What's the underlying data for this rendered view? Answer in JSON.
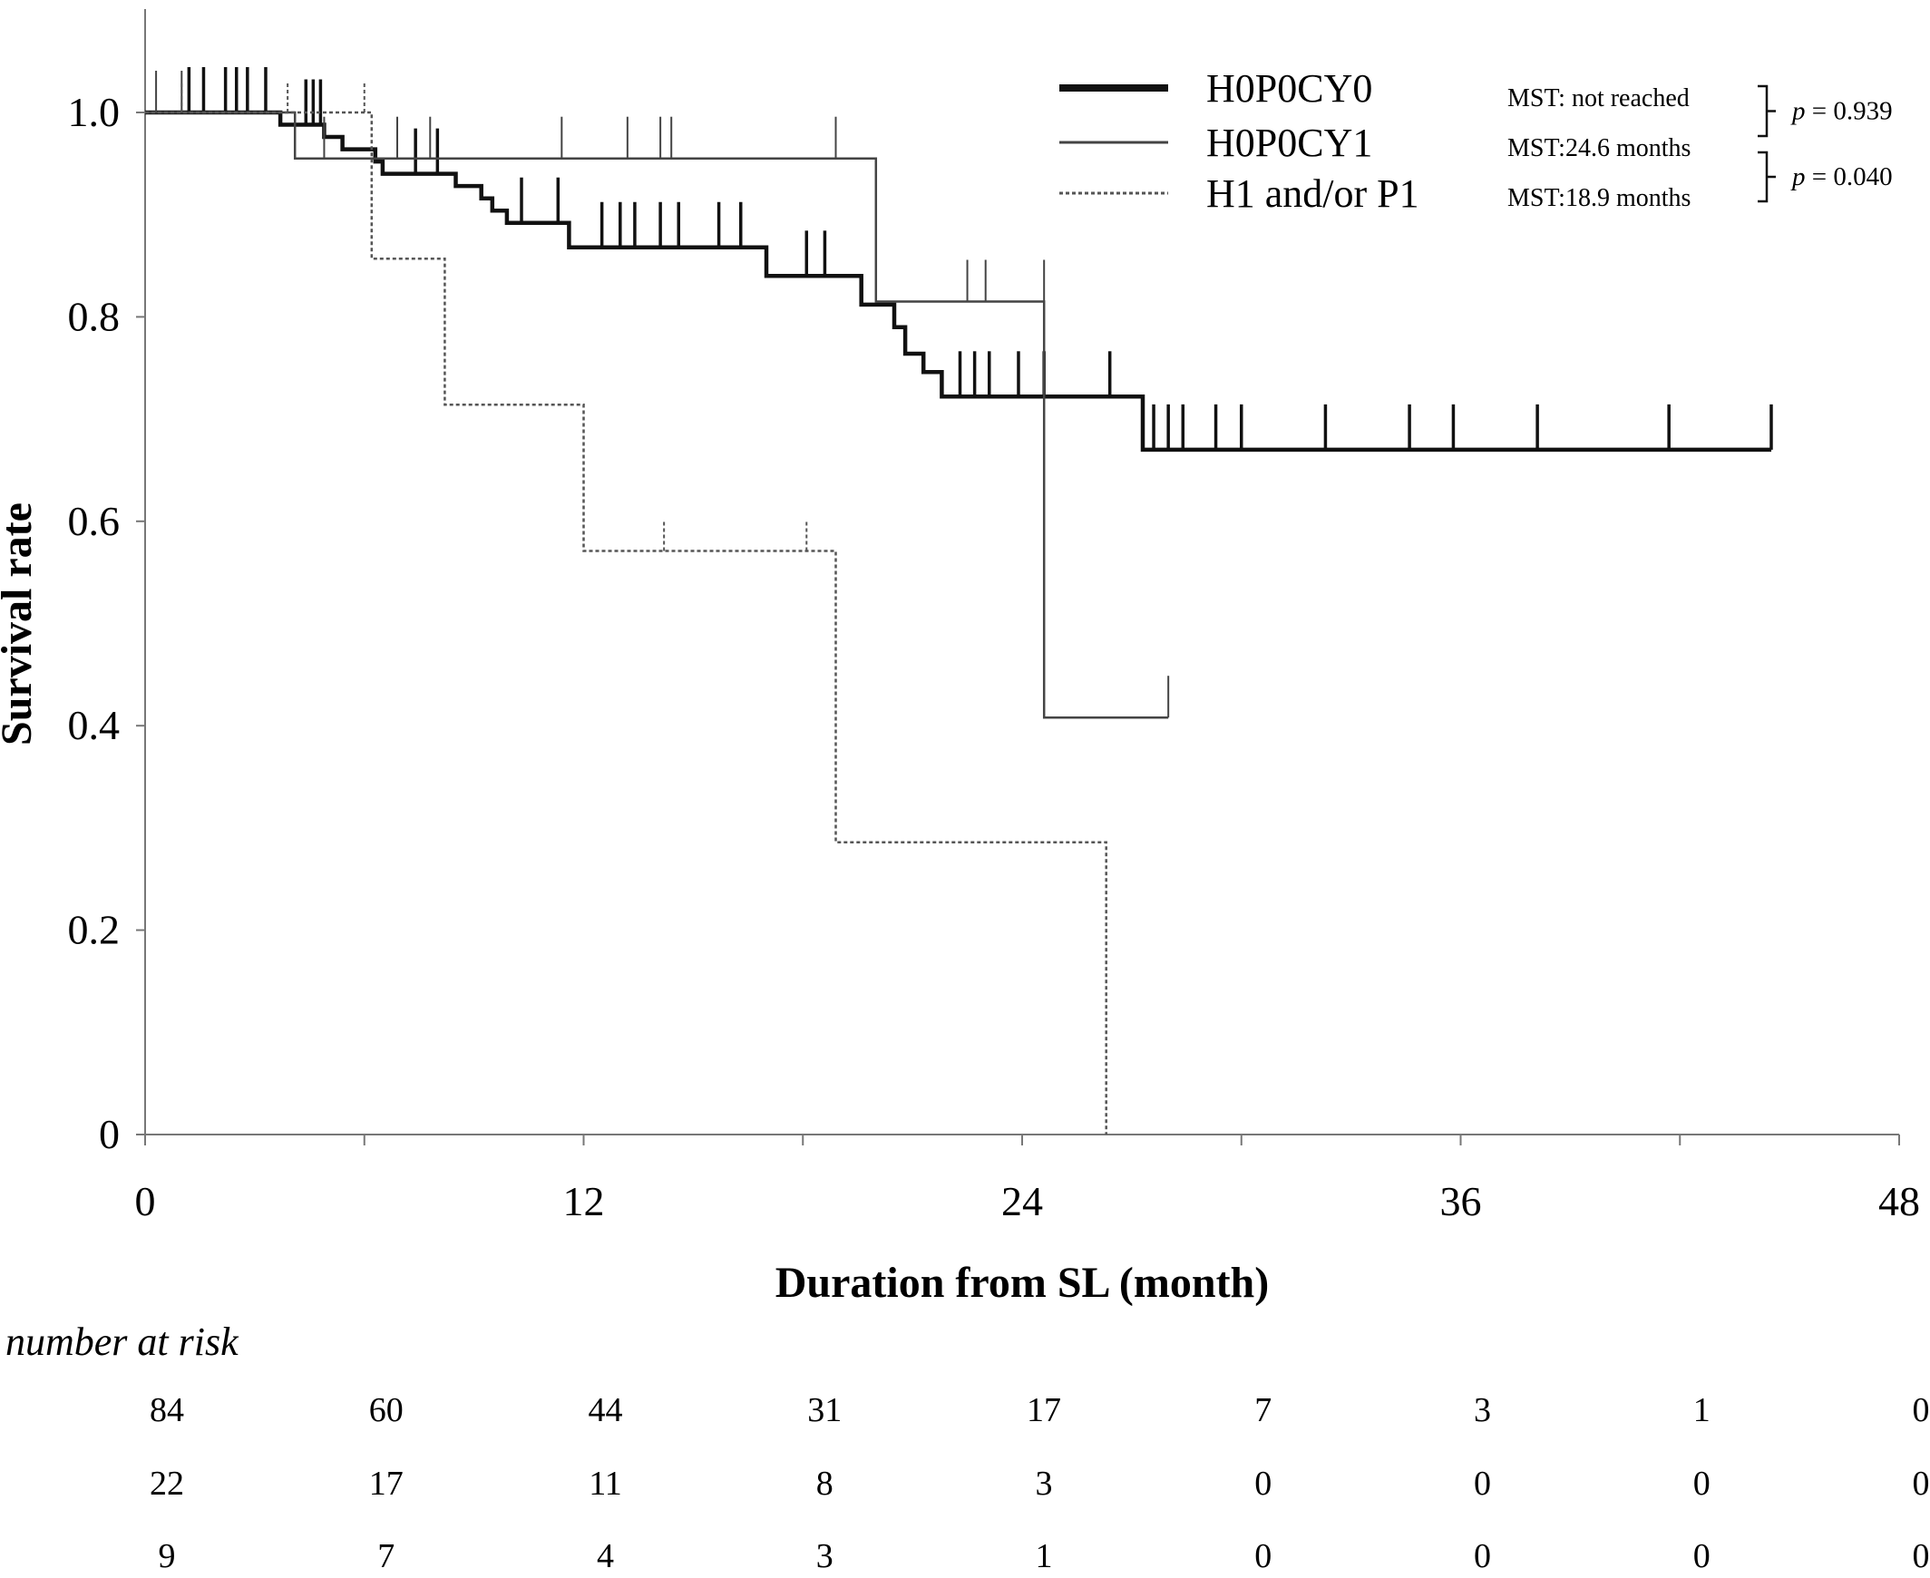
{
  "chart_data": {
    "type": "line",
    "subtype": "kaplan-meier",
    "title": "",
    "xlabel": "Duration from SL (month)",
    "ylabel": "Survival rate",
    "xlim": [
      0,
      48
    ],
    "ylim": [
      0,
      1.1
    ],
    "x_ticks": [
      "0",
      "12",
      "24",
      "36",
      "48"
    ],
    "y_ticks": [
      "0",
      "0.2",
      "0.4",
      "0.6",
      "0.8",
      "1.0"
    ],
    "grid": false,
    "legend_position": "top-right",
    "series": [
      {
        "name": "H0P0CY0",
        "line_style": "thick-solid",
        "color": "#111111",
        "mst": "MST: not reached",
        "steps": [
          [
            0,
            1.0
          ],
          [
            3.7,
            1.0
          ],
          [
            3.7,
            0.988
          ],
          [
            4.9,
            0.988
          ],
          [
            4.9,
            0.976
          ],
          [
            5.4,
            0.976
          ],
          [
            5.4,
            0.964
          ],
          [
            6.3,
            0.964
          ],
          [
            6.3,
            0.952
          ],
          [
            6.5,
            0.952
          ],
          [
            6.5,
            0.94
          ],
          [
            8.5,
            0.94
          ],
          [
            8.5,
            0.928
          ],
          [
            9.2,
            0.928
          ],
          [
            9.2,
            0.916
          ],
          [
            9.5,
            0.916
          ],
          [
            9.5,
            0.904
          ],
          [
            9.9,
            0.904
          ],
          [
            9.9,
            0.892
          ],
          [
            11.6,
            0.892
          ],
          [
            11.6,
            0.868
          ],
          [
            17.0,
            0.868
          ],
          [
            17.0,
            0.84
          ],
          [
            19.6,
            0.84
          ],
          [
            19.6,
            0.812
          ],
          [
            20.5,
            0.812
          ],
          [
            20.5,
            0.79
          ],
          [
            20.8,
            0.79
          ],
          [
            20.8,
            0.764
          ],
          [
            21.3,
            0.764
          ],
          [
            21.3,
            0.746
          ],
          [
            21.8,
            0.746
          ],
          [
            21.8,
            0.722
          ],
          [
            27.3,
            0.722
          ],
          [
            27.3,
            0.67
          ],
          [
            44.5,
            0.67
          ]
        ],
        "censored": [
          [
            1.2,
            1.0
          ],
          [
            1.6,
            1.0
          ],
          [
            2.2,
            1.0
          ],
          [
            2.5,
            1.0
          ],
          [
            2.8,
            1.0
          ],
          [
            3.3,
            1.0
          ],
          [
            4.4,
            0.988
          ],
          [
            4.6,
            0.988
          ],
          [
            4.8,
            0.988
          ],
          [
            7.4,
            0.94
          ],
          [
            8.0,
            0.94
          ],
          [
            10.3,
            0.892
          ],
          [
            11.3,
            0.892
          ],
          [
            12.5,
            0.868
          ],
          [
            13.0,
            0.868
          ],
          [
            13.4,
            0.868
          ],
          [
            14.1,
            0.868
          ],
          [
            14.6,
            0.868
          ],
          [
            15.7,
            0.868
          ],
          [
            16.3,
            0.868
          ],
          [
            18.1,
            0.84
          ],
          [
            18.6,
            0.84
          ],
          [
            22.3,
            0.722
          ],
          [
            22.7,
            0.722
          ],
          [
            23.1,
            0.722
          ],
          [
            23.9,
            0.722
          ],
          [
            24.6,
            0.722
          ],
          [
            26.4,
            0.722
          ],
          [
            27.6,
            0.67
          ],
          [
            28.0,
            0.67
          ],
          [
            28.4,
            0.67
          ],
          [
            29.3,
            0.67
          ],
          [
            30.0,
            0.67
          ],
          [
            32.3,
            0.67
          ],
          [
            34.6,
            0.67
          ],
          [
            35.8,
            0.67
          ],
          [
            38.1,
            0.67
          ],
          [
            41.7,
            0.67
          ],
          [
            44.5,
            0.67
          ]
        ]
      },
      {
        "name": "H0P0CY1",
        "line_style": "thin-solid",
        "color": "#444444",
        "mst": "MST:24.6 months",
        "steps": [
          [
            0,
            1.0
          ],
          [
            4.1,
            1.0
          ],
          [
            4.1,
            0.955
          ],
          [
            20.0,
            0.955
          ],
          [
            20.0,
            0.815
          ],
          [
            24.6,
            0.815
          ],
          [
            24.6,
            0.408
          ],
          [
            28.0,
            0.408
          ]
        ],
        "censored": [
          [
            0.3,
            1.0
          ],
          [
            1.0,
            1.0
          ],
          [
            4.9,
            0.955
          ],
          [
            6.9,
            0.955
          ],
          [
            7.8,
            0.955
          ],
          [
            11.4,
            0.955
          ],
          [
            13.2,
            0.955
          ],
          [
            14.1,
            0.955
          ],
          [
            14.4,
            0.955
          ],
          [
            18.9,
            0.955
          ],
          [
            22.5,
            0.815
          ],
          [
            23.0,
            0.815
          ],
          [
            24.6,
            0.815
          ],
          [
            28.0,
            0.408
          ]
        ]
      },
      {
        "name": "H1 and/or P1",
        "line_style": "dotted",
        "color": "#555555",
        "mst": "MST:18.9 months",
        "steps": [
          [
            0,
            1.0
          ],
          [
            6.2,
            1.0
          ],
          [
            6.2,
            0.857
          ],
          [
            8.2,
            0.857
          ],
          [
            8.2,
            0.714
          ],
          [
            12.0,
            0.714
          ],
          [
            12.0,
            0.571
          ],
          [
            18.9,
            0.571
          ],
          [
            18.9,
            0.286
          ],
          [
            26.3,
            0.286
          ],
          [
            26.3,
            0.0
          ]
        ],
        "censored": [
          [
            1.0,
            1.0
          ],
          [
            3.9,
            1.0
          ],
          [
            6.0,
            1.0
          ],
          [
            14.2,
            0.571
          ],
          [
            18.1,
            0.571
          ]
        ]
      }
    ],
    "comparisons": [
      {
        "prefix": "p",
        "text": " = 0.939"
      },
      {
        "prefix": "p",
        "text": " = 0.040"
      }
    ],
    "number_at_risk": {
      "title": "number at risk",
      "time_points": [
        0,
        6,
        12,
        18,
        24,
        30,
        36,
        42,
        48
      ],
      "rows": [
        [
          "84",
          "60",
          "44",
          "31",
          "17",
          "7",
          "3",
          "1",
          "0"
        ],
        [
          "22",
          "17",
          "11",
          "8",
          "3",
          "0",
          "0",
          "0",
          "0"
        ],
        [
          "9",
          "7",
          "4",
          "3",
          "1",
          "0",
          "0",
          "0",
          "0"
        ]
      ]
    }
  }
}
